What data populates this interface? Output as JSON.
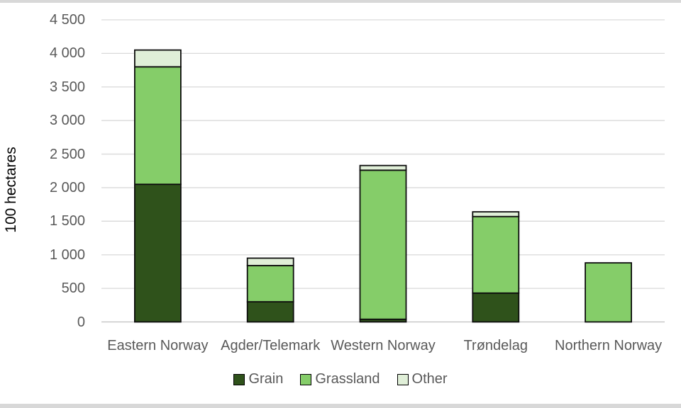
{
  "page": {
    "top_strip_color": "#d8d8d8",
    "bottom_strip_color": "#d8d8d8",
    "background_color": "#ffffff"
  },
  "chart_data": {
    "type": "bar",
    "stacked": true,
    "title": "",
    "xlabel": "",
    "ylabel": "100 hectares",
    "categories": [
      "Eastern Norway",
      "Agder/Telemark",
      "Western Norway",
      "Trøndelag",
      "Northern Norway"
    ],
    "series": [
      {
        "name": "Grain",
        "color": "#2f521b",
        "values": [
          2050,
          300,
          40,
          430,
          0
        ]
      },
      {
        "name": "Grassland",
        "color": "#85cd69",
        "values": [
          1750,
          540,
          2220,
          1140,
          880
        ]
      },
      {
        "name": "Other",
        "color": "#e0efd8",
        "values": [
          250,
          110,
          70,
          70,
          0
        ]
      }
    ],
    "stack_totals": [
      4050,
      950,
      2330,
      1640,
      880
    ],
    "ylim": [
      0,
      4500
    ],
    "ytick_interval": 500,
    "ytick_labels": [
      "0",
      "500",
      "1 000",
      "1 500",
      "2 000",
      "2 500",
      "3 000",
      "3 500",
      "4 000",
      "4 500"
    ],
    "grid": "horizontal",
    "gridline_color": "#d9d9d9",
    "zero_line_color": "#bfbfbf",
    "axis_text_color": "#595959",
    "bar_border_color": "#0d0d0d",
    "legend_position": "bottom",
    "legend_text_color": "#595959"
  }
}
